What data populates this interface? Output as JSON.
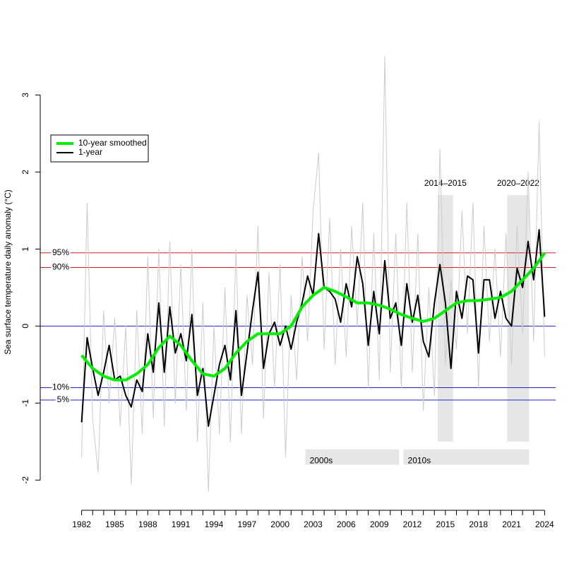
{
  "chart_data": {
    "type": "line",
    "ylabel": "Sea surface temperature daily anomaly (°C)",
    "xlim": [
      1981,
      2025
    ],
    "ylim": [
      -2.3,
      3.6
    ],
    "xticks": [
      1982,
      1985,
      1988,
      1991,
      1994,
      1997,
      2000,
      2003,
      2006,
      2009,
      2012,
      2015,
      2018,
      2021,
      2024
    ],
    "x_minor_ticks": [
      1983,
      1984,
      1986,
      1987,
      1989,
      1990,
      1992,
      1993,
      1995,
      1996,
      1998,
      1999,
      2001,
      2002,
      2004,
      2005,
      2007,
      2008,
      2010,
      2011,
      2013,
      2014,
      2016,
      2017,
      2019,
      2020,
      2022,
      2023
    ],
    "yticks": [
      -2,
      -1,
      0,
      1,
      2,
      3
    ],
    "legend": "upper left",
    "hlines": [
      {
        "value": 0.95,
        "label": "95%",
        "color": "#d62020"
      },
      {
        "value": 0.76,
        "label": "90%",
        "color": "#d62020"
      },
      {
        "value": 0,
        "color": "#2020c8"
      },
      {
        "value": -0.8,
        "label": "10%",
        "color": "#2020c8"
      },
      {
        "value": -0.96,
        "label": "5%",
        "color": "#2020c8"
      }
    ],
    "shades": [
      {
        "label": "2014–2015",
        "x": [
          2014.3,
          2015.7
        ],
        "y": [
          -1.5,
          1.7
        ]
      },
      {
        "label": "2020–2022",
        "x": [
          2020.6,
          2022.6
        ],
        "y": [
          -1.5,
          1.7
        ]
      },
      {
        "label": "2000s",
        "x": [
          2002.3,
          2010.8
        ],
        "y": [
          -1.8,
          -1.6
        ]
      },
      {
        "label": "2010s",
        "x": [
          2011.2,
          2022.6
        ],
        "y": [
          -1.8,
          -1.6
        ]
      }
    ],
    "series": [
      {
        "color": "#cccccc",
        "x": [
          1982,
          1982.5,
          1983,
          1983.5,
          1984,
          1984.5,
          1985,
          1985.5,
          1986,
          1986.5,
          1987,
          1987.5,
          1988,
          1988.5,
          1989,
          1989.5,
          1990,
          1990.5,
          1991,
          1991.5,
          1992,
          1992.5,
          1993,
          1993.5,
          1994,
          1994.5,
          1995,
          1995.5,
          1996,
          1996.5,
          1997,
          1997.5,
          1998,
          1998.5,
          1999,
          1999.5,
          2000,
          2000.5,
          2001,
          2001.5,
          2002,
          2002.5,
          2003,
          2003.5,
          2004,
          2004.5,
          2005,
          2005.5,
          2006,
          2006.5,
          2007,
          2007.5,
          2008,
          2008.5,
          2009,
          2009.5,
          2010,
          2010.5,
          2011,
          2011.5,
          2012,
          2012.5,
          2013,
          2013.5,
          2014,
          2014.5,
          2015,
          2015.5,
          2016,
          2016.5,
          2017,
          2017.5,
          2018,
          2018.5,
          2019,
          2019.5,
          2020,
          2020.5,
          2021,
          2021.5,
          2022,
          2022.5,
          2023,
          2023.5,
          2024
        ],
        "values": [
          -1.7,
          1.6,
          -1.2,
          -1.9,
          0.2,
          -1.0,
          0.1,
          -1.3,
          0.0,
          -2.05,
          0.2,
          -1.4,
          0.9,
          -1.2,
          1.0,
          -1.3,
          1.1,
          -1.0,
          0.8,
          -1.1,
          1.0,
          -1.5,
          0.3,
          -2.15,
          0.0,
          -1.4,
          0.5,
          -1.5,
          1.0,
          -1.4,
          0.4,
          -0.5,
          1.3,
          -1.2,
          0.7,
          -0.8,
          0.8,
          -1.7,
          0.4,
          -0.7,
          0.9,
          -0.2,
          1.5,
          2.25,
          -0.3,
          1.4,
          -0.5,
          1.0,
          -0.4,
          1.3,
          0.0,
          1.6,
          -0.8,
          1.2,
          -0.7,
          3.5,
          -0.6,
          1.2,
          -0.8,
          1.6,
          -0.6,
          1.2,
          -1.1,
          0.5,
          -0.9,
          2.3,
          -0.5,
          0.6,
          -0.3,
          1.5,
          -0.1,
          1.6,
          -0.8,
          1.3,
          -0.2,
          1.0,
          -0.4,
          1.2,
          -0.5,
          1.3,
          -0.1,
          2.0,
          -0.2,
          2.65,
          -0.4
        ]
      },
      {
        "name": "1-year",
        "color": "#000000",
        "x": [
          1982,
          1982.5,
          1983,
          1983.5,
          1984,
          1984.5,
          1985,
          1985.5,
          1986,
          1986.5,
          1987,
          1987.5,
          1988,
          1988.5,
          1989,
          1989.5,
          1990,
          1990.5,
          1991,
          1991.5,
          1992,
          1992.5,
          1993,
          1993.5,
          1994,
          1994.5,
          1995,
          1995.5,
          1996,
          1996.5,
          1997,
          1997.5,
          1998,
          1998.5,
          1999,
          1999.5,
          2000,
          2000.5,
          2001,
          2001.5,
          2002,
          2002.5,
          2003,
          2003.5,
          2004,
          2004.5,
          2005,
          2005.5,
          2006,
          2006.5,
          2007,
          2007.5,
          2008,
          2008.5,
          2009,
          2009.5,
          2010,
          2010.5,
          2011,
          2011.5,
          2012,
          2012.5,
          2013,
          2013.5,
          2014,
          2014.5,
          2015,
          2015.5,
          2016,
          2016.5,
          2017,
          2017.5,
          2018,
          2018.5,
          2019,
          2019.5,
          2020,
          2020.5,
          2021,
          2021.5,
          2022,
          2022.5,
          2023,
          2023.5,
          2024
        ],
        "values": [
          -1.25,
          -0.15,
          -0.55,
          -0.9,
          -0.6,
          -0.25,
          -0.7,
          -0.65,
          -0.9,
          -1.05,
          -0.7,
          -0.85,
          -0.1,
          -0.6,
          0.3,
          -0.6,
          0.25,
          -0.35,
          -0.1,
          -0.45,
          0.15,
          -0.9,
          -0.55,
          -1.3,
          -0.9,
          -0.5,
          -0.25,
          -0.7,
          0.2,
          -0.9,
          -0.35,
          0.2,
          0.7,
          -0.55,
          -0.1,
          0.05,
          -0.25,
          0.0,
          -0.3,
          0.05,
          0.3,
          0.65,
          0.4,
          1.2,
          0.5,
          0.45,
          0.35,
          0.05,
          0.55,
          0.25,
          0.9,
          0.55,
          -0.25,
          0.45,
          -0.1,
          0.85,
          0.1,
          0.3,
          -0.25,
          0.55,
          0.05,
          0.4,
          -0.2,
          -0.4,
          0.3,
          0.8,
          0.3,
          -0.55,
          0.45,
          0.1,
          0.65,
          0.6,
          -0.35,
          0.6,
          0.6,
          0.1,
          0.45,
          0.1,
          0.0,
          0.75,
          0.5,
          1.1,
          0.6,
          1.25,
          0.12
        ]
      },
      {
        "name": "10-year smoothed",
        "color": "#00ee00",
        "x": [
          1982,
          1983,
          1984,
          1985,
          1986,
          1987,
          1988,
          1989,
          1990,
          1991,
          1992,
          1993,
          1994,
          1995,
          1996,
          1997,
          1998,
          1999,
          2000,
          2001,
          2002,
          2003,
          2004,
          2005,
          2006,
          2007,
          2008,
          2009,
          2010,
          2011,
          2012,
          2013,
          2014,
          2015,
          2016,
          2017,
          2018,
          2019,
          2020,
          2021,
          2022,
          2023,
          2024
        ],
        "values": [
          -0.38,
          -0.55,
          -0.65,
          -0.7,
          -0.7,
          -0.62,
          -0.5,
          -0.28,
          -0.13,
          -0.25,
          -0.45,
          -0.62,
          -0.65,
          -0.55,
          -0.35,
          -0.2,
          -0.1,
          -0.1,
          -0.1,
          0.0,
          0.25,
          0.4,
          0.5,
          0.45,
          0.38,
          0.3,
          0.3,
          0.27,
          0.22,
          0.15,
          0.1,
          0.06,
          0.1,
          0.2,
          0.3,
          0.33,
          0.33,
          0.35,
          0.37,
          0.45,
          0.6,
          0.75,
          0.95
        ]
      }
    ]
  }
}
